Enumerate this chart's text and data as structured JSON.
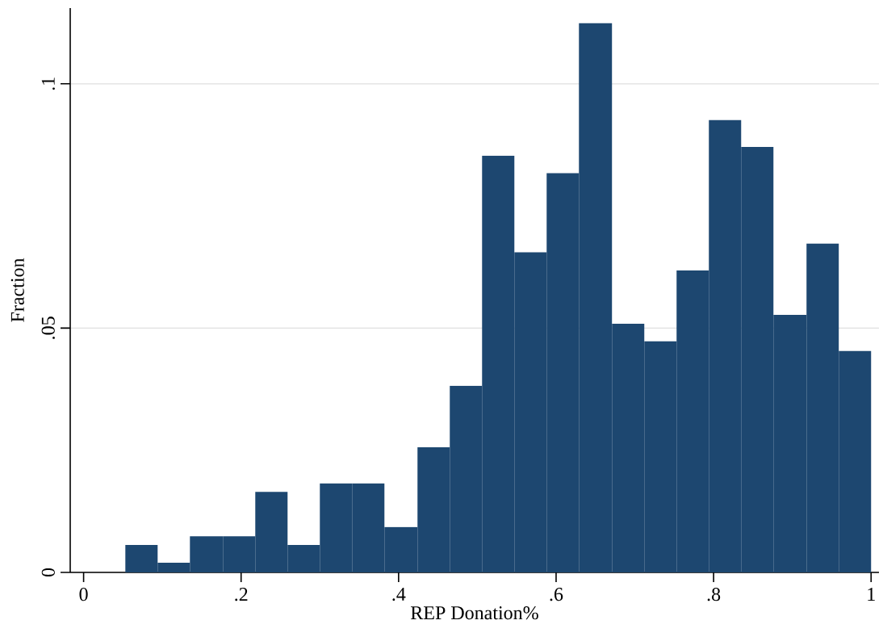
{
  "chart_data": {
    "type": "histogram",
    "xlabel": "REP Donation%",
    "ylabel": "Fraction",
    "color": "#1d4770",
    "bins": [
      0.053,
      0.094,
      0.135,
      0.177,
      0.218,
      0.259,
      0.3,
      0.341,
      0.382,
      0.424,
      0.465,
      0.506,
      0.547,
      0.588,
      0.629,
      0.671,
      0.712,
      0.753,
      0.794,
      0.835,
      0.876,
      0.918,
      0.959,
      1.0
    ],
    "values": [
      0.0056,
      0.002,
      0.0074,
      0.0074,
      0.0165,
      0.0056,
      0.0182,
      0.0182,
      0.0093,
      0.0256,
      0.0382,
      0.0853,
      0.0655,
      0.0817,
      0.1124,
      0.0509,
      0.0473,
      0.0618,
      0.0926,
      0.0871,
      0.0527,
      0.0673,
      0.0453
    ],
    "xlim": [
      -0.017,
      1.01
    ],
    "ylim": [
      0,
      0.1155
    ],
    "xticks": [
      0,
      {
        "value": 0.2,
        "label": ".2"
      },
      {
        "value": 0.4,
        "label": ".4"
      },
      {
        "value": 0.6,
        "label": ".6"
      },
      {
        "value": 0.8,
        "label": ".8"
      },
      1
    ],
    "yticks": [
      0,
      {
        "value": 0.05,
        "label": ".05"
      },
      {
        "value": 0.1,
        "label": ".1"
      }
    ],
    "grid": "y"
  }
}
